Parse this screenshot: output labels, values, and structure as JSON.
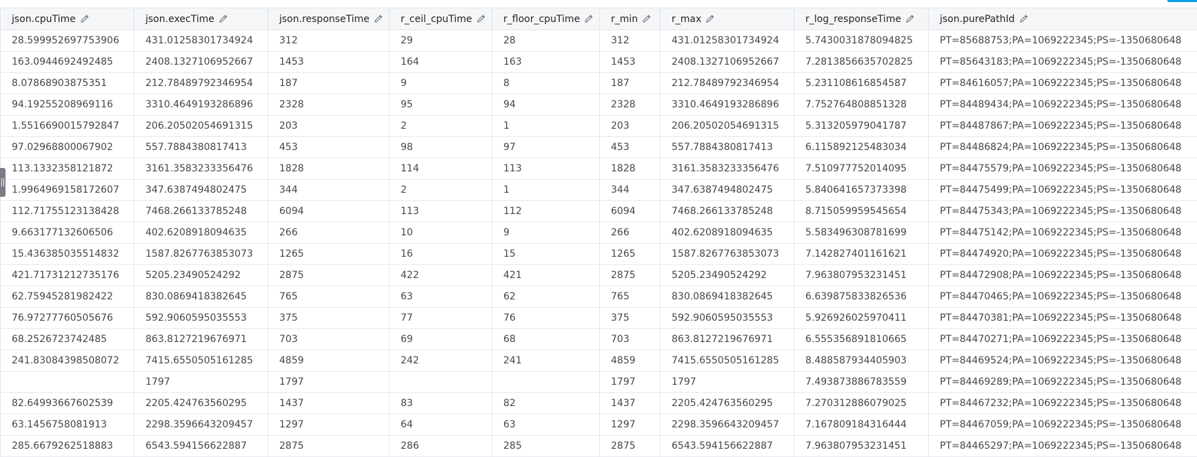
{
  "colors": {
    "header_bg": "#f4f6f8",
    "border": "#dfe4ea",
    "text": "#454646",
    "accent": "#00a1e0"
  },
  "columns": [
    {
      "label": "json.cpuTime",
      "icon": "pencil-icon"
    },
    {
      "label": "json.execTime",
      "icon": "pencil-icon"
    },
    {
      "label": "json.responseTime",
      "icon": "pencil-icon"
    },
    {
      "label": "r_ceil_cpuTime",
      "icon": "pencil-icon"
    },
    {
      "label": "r_floor_cpuTime",
      "icon": "pencil-icon"
    },
    {
      "label": "r_min",
      "icon": "pencil-icon"
    },
    {
      "label": "r_max",
      "icon": "pencil-icon"
    },
    {
      "label": "r_log_responseTime",
      "icon": "pencil-icon"
    },
    {
      "label": "json.purePathId",
      "icon": "pencil-icon"
    }
  ],
  "rows": [
    [
      "28.599952697753906",
      "431.01258301734924",
      "312",
      "29",
      "28",
      "312",
      "431.01258301734924",
      "5.7430031878094825",
      "PT=85688753;PA=1069222345;PS=-1350680648"
    ],
    [
      "163.0944692492485",
      "2408.1327106952667",
      "1453",
      "164",
      "163",
      "1453",
      "2408.1327106952667",
      "7.2813856635702825",
      "PT=85643183;PA=1069222345;PS=-1350680648"
    ],
    [
      "8.07868903875351",
      "212.78489792346954",
      "187",
      "9",
      "8",
      "187",
      "212.78489792346954",
      "5.231108616854587",
      "PT=84616057;PA=1069222345;PS=-1350680648"
    ],
    [
      "94.19255208969116",
      "3310.4649193286896",
      "2328",
      "95",
      "94",
      "2328",
      "3310.4649193286896",
      "7.752764808851328",
      "PT=84489434;PA=1069222345;PS=-1350680648"
    ],
    [
      "1.5516690015792847",
      "206.20502054691315",
      "203",
      "2",
      "1",
      "203",
      "206.20502054691315",
      "5.313205979041787",
      "PT=84487867;PA=1069222345;PS=-1350680648"
    ],
    [
      "97.02968800067902",
      "557.7884380817413",
      "453",
      "98",
      "97",
      "453",
      "557.7884380817413",
      "6.115892125483034",
      "PT=84486824;PA=1069222345;PS=-1350680648"
    ],
    [
      "113.1332358121872",
      "3161.3583233356476",
      "1828",
      "114",
      "113",
      "1828",
      "3161.3583233356476",
      "7.510977752014095",
      "PT=84475579;PA=1069222345;PS=-1350680648"
    ],
    [
      "1.9964969158172607",
      "347.6387494802475",
      "344",
      "2",
      "1",
      "344",
      "347.6387494802475",
      "5.840641657373398",
      "PT=84475499;PA=1069222345;PS=-1350680648"
    ],
    [
      "112.71755123138428",
      "7468.266133785248",
      "6094",
      "113",
      "112",
      "6094",
      "7468.266133785248",
      "8.715059959545654",
      "PT=84475343;PA=1069222345;PS=-1350680648"
    ],
    [
      "9.663177132606506",
      "402.6208918094635",
      "266",
      "10",
      "9",
      "266",
      "402.6208918094635",
      "5.583496308781699",
      "PT=84475142;PA=1069222345;PS=-1350680648"
    ],
    [
      "15.436385035514832",
      "1587.8267763853073",
      "1265",
      "16",
      "15",
      "1265",
      "1587.8267763853073",
      "7.142827401161621",
      "PT=84474920;PA=1069222345;PS=-1350680648"
    ],
    [
      "421.71731212735176",
      "5205.23490524292",
      "2875",
      "422",
      "421",
      "2875",
      "5205.23490524292",
      "7.963807953231451",
      "PT=84472908;PA=1069222345;PS=-1350680648"
    ],
    [
      "62.75945281982422",
      "830.0869418382645",
      "765",
      "63",
      "62",
      "765",
      "830.0869418382645",
      "6.639875833826536",
      "PT=84470465;PA=1069222345;PS=-1350680648"
    ],
    [
      "76.97277760505676",
      "592.9060595035553",
      "375",
      "77",
      "76",
      "375",
      "592.9060595035553",
      "5.926926025970411",
      "PT=84470381;PA=1069222345;PS=-1350680648"
    ],
    [
      "68.2526723742485",
      "863.8127219676971",
      "703",
      "69",
      "68",
      "703",
      "863.8127219676971",
      "6.555356891810665",
      "PT=84470271;PA=1069222345;PS=-1350680648"
    ],
    [
      "241.83084398508072",
      "7415.6550505161285",
      "4859",
      "242",
      "241",
      "4859",
      "7415.6550505161285",
      "8.488587934405903",
      "PT=84469524;PA=1069222345;PS=-1350680648"
    ],
    [
      "",
      "1797",
      "1797",
      "",
      "",
      "1797",
      "1797",
      "7.493873886783559",
      "PT=84469289;PA=1069222345;PS=-1350680648"
    ],
    [
      "82.64993667602539",
      "2205.424763560295",
      "1437",
      "83",
      "82",
      "1437",
      "2205.424763560295",
      "7.270312886079025",
      "PT=84467232;PA=1069222345;PS=-1350680648"
    ],
    [
      "63.1456758081913",
      "2298.3596643209457",
      "1297",
      "64",
      "63",
      "1297",
      "2298.3596643209457",
      "7.167809184316444",
      "PT=84467059;PA=1069222345;PS=-1350680648"
    ],
    [
      "285.6679262518883",
      "6543.594156622887",
      "2875",
      "286",
      "285",
      "2875",
      "6543.594156622887",
      "7.963807953231451",
      "PT=84465297;PA=1069222345;PS=-1350680648"
    ]
  ]
}
